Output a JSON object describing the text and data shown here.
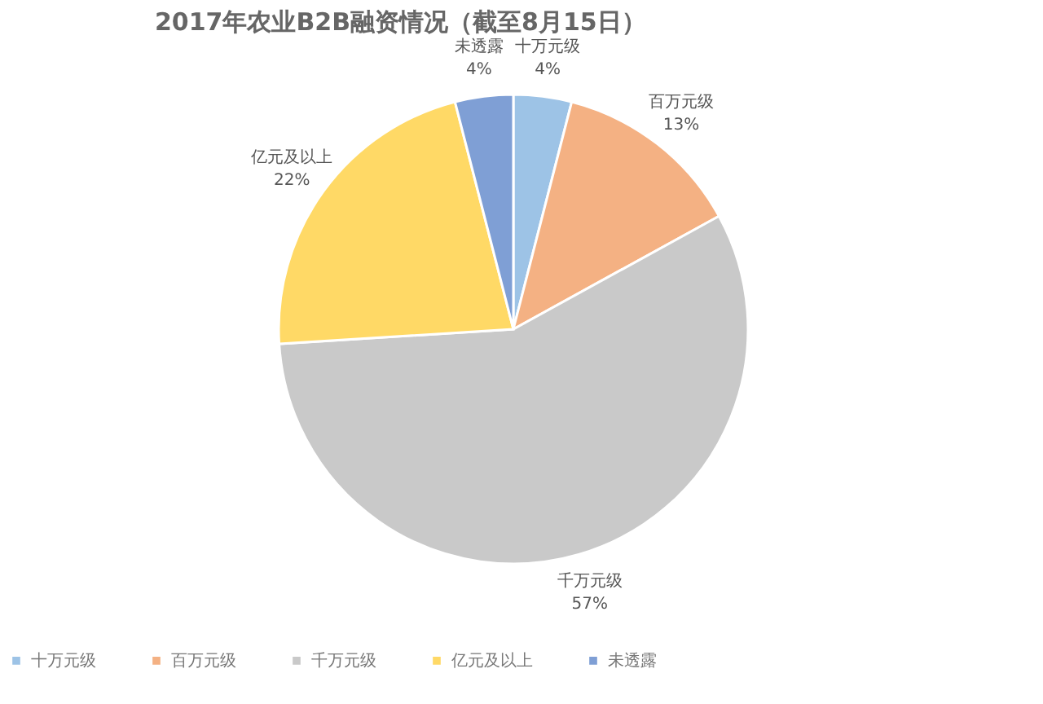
{
  "chart_data": {
    "type": "pie",
    "title": "2017年农业B2B融资情况（截至8月15日）",
    "categories": [
      "十万元级",
      "百万元级",
      "千万元级",
      "亿元及以上",
      "未透露"
    ],
    "values": [
      4,
      13,
      57,
      22,
      4
    ],
    "value_labels": [
      "4%",
      "13%",
      "57%",
      "22%",
      "4%"
    ],
    "colors": [
      "#9dc3e6",
      "#f4b183",
      "#c9c9c9",
      "#ffd966",
      "#7f9fd5"
    ],
    "legend": "bottom"
  }
}
